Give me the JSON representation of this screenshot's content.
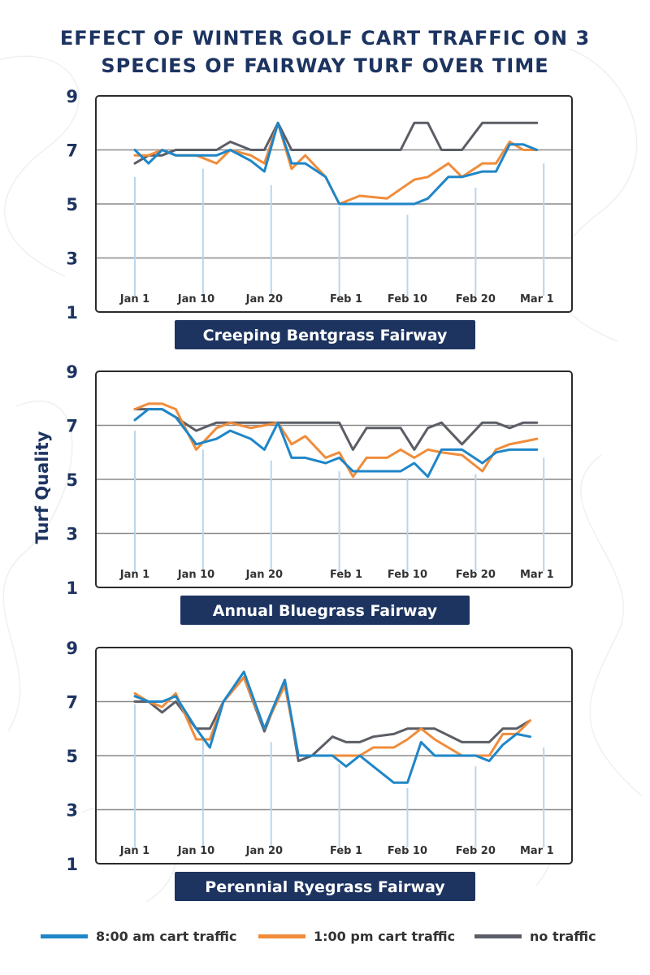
{
  "title_line1": "EFFECT OF WINTER GOLF CART TRAFFIC ON 3",
  "title_line2": "SPECIES OF FAIRWAY TURF OVER TIME",
  "ylabel": "Turf Quality",
  "colors": {
    "navy": "#1d3461",
    "series_8am": "#1f86c8",
    "series_1pm": "#f08c3a",
    "series_none": "#5b5e66",
    "marker": "#b9d6ee",
    "grid": "#8a8a8a"
  },
  "legend": [
    {
      "label": "8:00 am cart traffic",
      "color": "#1f86c8"
    },
    {
      "label": "1:00 pm cart traffic",
      "color": "#f08c3a"
    },
    {
      "label": "no traffic",
      "color": "#5b5e66"
    }
  ],
  "chart_data": [
    {
      "type": "line",
      "title": "Creeping Bentgrass Fairway",
      "xlabel": "",
      "ylabel": "Turf Quality",
      "ylim": [
        1,
        9
      ],
      "yticks": [
        1,
        3,
        5,
        7,
        9
      ],
      "gridlines": [
        3,
        5,
        7
      ],
      "xlim": [
        0,
        64
      ],
      "xticks": [
        {
          "label": "Jan 1",
          "day": 0
        },
        {
          "label": "Jan 10",
          "day": 9
        },
        {
          "label": "Jan 20",
          "day": 19
        },
        {
          "label": "Feb 1",
          "day": 31
        },
        {
          "label": "Feb 10",
          "day": 40
        },
        {
          "label": "Feb 20",
          "day": 50
        },
        {
          "label": "Mar 1",
          "day": 59
        }
      ],
      "markers": [
        {
          "day": 0,
          "top": 6.0
        },
        {
          "day": 10,
          "top": 6.3
        },
        {
          "day": 20,
          "top": 5.7
        },
        {
          "day": 30,
          "top": 4.9
        },
        {
          "day": 40,
          "top": 4.6
        },
        {
          "day": 50,
          "top": 5.6
        },
        {
          "day": 60,
          "top": 6.5
        }
      ],
      "series": [
        {
          "name": "8:00 am cart traffic",
          "x": [
            0,
            2,
            4,
            6,
            9,
            12,
            14,
            17,
            19,
            21,
            23,
            25,
            28,
            30,
            33,
            37,
            41,
            43,
            46,
            48,
            51,
            53,
            55,
            57,
            59
          ],
          "y": [
            7.0,
            6.5,
            7.0,
            6.8,
            6.8,
            6.8,
            7.0,
            6.6,
            6.2,
            8.0,
            6.5,
            6.5,
            6.0,
            5.0,
            5.0,
            5.0,
            5.0,
            5.2,
            6.0,
            6.0,
            6.2,
            6.2,
            7.2,
            7.2,
            7.0
          ]
        },
        {
          "name": "1:00 pm cart traffic",
          "x": [
            0,
            2,
            4,
            6,
            9,
            12,
            14,
            17,
            19,
            21,
            23,
            25,
            28,
            30,
            33,
            37,
            41,
            43,
            46,
            48,
            51,
            53,
            55,
            57,
            59
          ],
          "y": [
            6.8,
            6.8,
            7.0,
            6.8,
            6.8,
            6.5,
            7.0,
            6.8,
            6.5,
            8.0,
            6.3,
            6.8,
            6.0,
            5.0,
            5.3,
            5.2,
            5.9,
            6.0,
            6.5,
            6.0,
            6.5,
            6.5,
            7.3,
            7.0,
            7.0
          ]
        },
        {
          "name": "no traffic",
          "x": [
            0,
            2,
            4,
            6,
            9,
            12,
            14,
            17,
            19,
            21,
            23,
            25,
            28,
            30,
            33,
            37,
            39,
            41,
            43,
            45,
            48,
            51,
            53,
            55,
            57,
            59
          ],
          "y": [
            6.5,
            6.8,
            6.8,
            7.0,
            7.0,
            7.0,
            7.3,
            7.0,
            7.0,
            8.0,
            7.0,
            7.0,
            7.0,
            7.0,
            7.0,
            7.0,
            7.0,
            8.0,
            8.0,
            7.0,
            7.0,
            8.0,
            8.0,
            8.0,
            8.0,
            8.0
          ]
        }
      ]
    },
    {
      "type": "line",
      "title": "Annual Bluegrass Fairway",
      "xlabel": "",
      "ylabel": "Turf Quality",
      "ylim": [
        1,
        9
      ],
      "yticks": [
        1,
        3,
        5,
        7,
        9
      ],
      "gridlines": [
        3,
        5,
        7
      ],
      "xlim": [
        0,
        64
      ],
      "xticks": [
        {
          "label": "Jan 1",
          "day": 0
        },
        {
          "label": "Jan 10",
          "day": 9
        },
        {
          "label": "Jan 20",
          "day": 19
        },
        {
          "label": "Feb 1",
          "day": 31
        },
        {
          "label": "Feb 10",
          "day": 40
        },
        {
          "label": "Feb 20",
          "day": 50
        },
        {
          "label": "Mar 1",
          "day": 59
        }
      ],
      "markers": [
        {
          "day": 0,
          "top": 6.8
        },
        {
          "day": 10,
          "top": 6.1
        },
        {
          "day": 20,
          "top": 5.7
        },
        {
          "day": 30,
          "top": 5.3
        },
        {
          "day": 40,
          "top": 5.0
        },
        {
          "day": 50,
          "top": 5.2
        },
        {
          "day": 60,
          "top": 5.8
        }
      ],
      "series": [
        {
          "name": "8:00 am cart traffic",
          "x": [
            0,
            2,
            4,
            6,
            9,
            12,
            14,
            17,
            19,
            21,
            23,
            25,
            28,
            30,
            32,
            34,
            37,
            39,
            41,
            43,
            45,
            48,
            51,
            53,
            55,
            57,
            59
          ],
          "y": [
            7.2,
            7.6,
            7.6,
            7.3,
            6.3,
            6.5,
            6.8,
            6.5,
            6.1,
            7.1,
            5.8,
            5.8,
            5.6,
            5.8,
            5.3,
            5.3,
            5.3,
            5.3,
            5.6,
            5.1,
            6.1,
            6.1,
            5.6,
            6.0,
            6.1,
            6.1,
            6.1
          ]
        },
        {
          "name": "1:00 pm cart traffic",
          "x": [
            0,
            2,
            4,
            6,
            9,
            12,
            14,
            17,
            19,
            21,
            23,
            25,
            28,
            30,
            32,
            34,
            37,
            39,
            41,
            43,
            45,
            48,
            51,
            53,
            55,
            57,
            59
          ],
          "y": [
            7.6,
            7.8,
            7.8,
            7.6,
            6.1,
            6.9,
            7.1,
            6.9,
            7.0,
            7.1,
            6.3,
            6.6,
            5.8,
            6.0,
            5.1,
            5.8,
            5.8,
            6.1,
            5.8,
            6.1,
            6.0,
            5.9,
            5.3,
            6.1,
            6.3,
            6.4,
            6.5
          ]
        },
        {
          "name": "no traffic",
          "x": [
            0,
            2,
            4,
            6,
            9,
            12,
            14,
            17,
            19,
            21,
            23,
            25,
            28,
            30,
            32,
            34,
            37,
            39,
            41,
            43,
            45,
            48,
            51,
            53,
            55,
            57,
            59
          ],
          "y": [
            7.6,
            7.6,
            7.6,
            7.3,
            6.8,
            7.1,
            7.1,
            7.1,
            7.1,
            7.1,
            7.1,
            7.1,
            7.1,
            7.1,
            6.1,
            6.9,
            6.9,
            6.9,
            6.1,
            6.9,
            7.1,
            6.3,
            7.1,
            7.1,
            6.9,
            7.1,
            7.1
          ]
        }
      ]
    },
    {
      "type": "line",
      "title": "Perennial Ryegrass Fairway",
      "xlabel": "",
      "ylabel": "Turf Quality",
      "ylim": [
        1,
        9
      ],
      "yticks": [
        1,
        3,
        5,
        7,
        9
      ],
      "gridlines": [
        3,
        5,
        7
      ],
      "xlim": [
        0,
        64
      ],
      "xticks": [
        {
          "label": "Jan 1",
          "day": 0
        },
        {
          "label": "Jan 10",
          "day": 9
        },
        {
          "label": "Jan 20",
          "day": 19
        },
        {
          "label": "Feb 1",
          "day": 31
        },
        {
          "label": "Feb 10",
          "day": 40
        },
        {
          "label": "Feb 20",
          "day": 50
        },
        {
          "label": "Mar 1",
          "day": 59
        }
      ],
      "markers": [
        {
          "day": 0,
          "top": 6.9
        },
        {
          "day": 10,
          "top": 5.7
        },
        {
          "day": 20,
          "top": 5.5
        },
        {
          "day": 30,
          "top": 4.7
        },
        {
          "day": 40,
          "top": 3.8
        },
        {
          "day": 50,
          "top": 4.6
        },
        {
          "day": 60,
          "top": 5.3
        }
      ],
      "series": [
        {
          "name": "8:00 am cart traffic",
          "x": [
            0,
            2,
            4,
            6,
            9,
            11,
            13,
            16,
            19,
            22,
            24,
            26,
            29,
            31,
            33,
            35,
            38,
            40,
            42,
            44,
            48,
            50,
            52,
            54,
            56,
            58
          ],
          "y": [
            7.2,
            7.0,
            7.0,
            7.2,
            6.0,
            5.3,
            7.0,
            8.1,
            6.0,
            7.8,
            5.0,
            5.0,
            5.0,
            4.6,
            5.0,
            4.6,
            4.0,
            4.0,
            5.5,
            5.0,
            5.0,
            5.0,
            4.8,
            5.4,
            5.8,
            5.7
          ]
        },
        {
          "name": "1:00 pm cart traffic",
          "x": [
            0,
            2,
            4,
            6,
            9,
            11,
            13,
            16,
            19,
            22,
            24,
            26,
            29,
            31,
            33,
            35,
            38,
            40,
            42,
            44,
            48,
            50,
            52,
            54,
            56,
            58
          ],
          "y": [
            7.3,
            7.0,
            6.8,
            7.3,
            5.6,
            5.6,
            7.0,
            7.9,
            6.0,
            7.6,
            5.0,
            5.0,
            5.0,
            5.0,
            5.0,
            5.3,
            5.3,
            5.6,
            6.0,
            5.6,
            5.0,
            5.0,
            5.0,
            5.8,
            5.8,
            6.3
          ]
        },
        {
          "name": "no traffic",
          "x": [
            0,
            2,
            4,
            6,
            9,
            11,
            13,
            16,
            19,
            22,
            24,
            26,
            29,
            31,
            33,
            35,
            38,
            40,
            42,
            44,
            48,
            50,
            52,
            54,
            56,
            58
          ],
          "y": [
            7.0,
            7.0,
            6.6,
            7.0,
            6.0,
            6.0,
            7.0,
            7.9,
            5.9,
            7.8,
            4.8,
            5.0,
            5.7,
            5.5,
            5.5,
            5.7,
            5.8,
            6.0,
            6.0,
            6.0,
            5.5,
            5.5,
            5.5,
            6.0,
            6.0,
            6.3
          ]
        }
      ]
    }
  ]
}
